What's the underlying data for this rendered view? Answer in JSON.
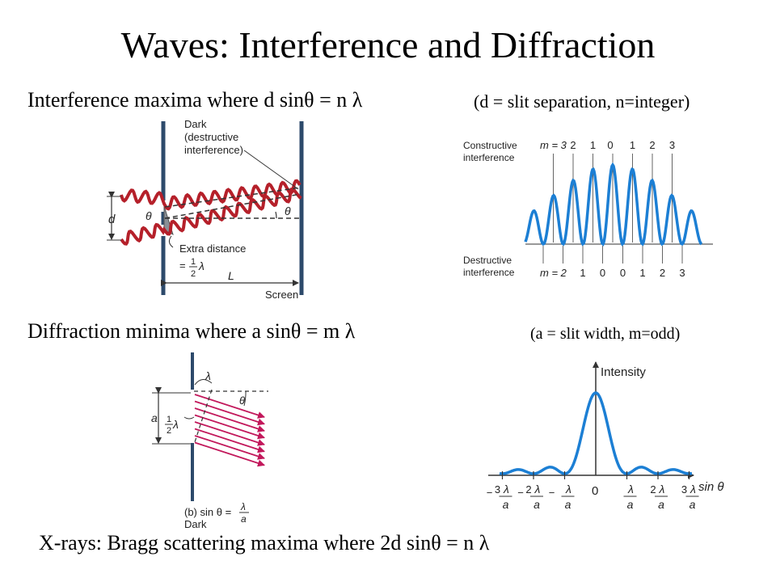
{
  "title": "Waves:  Interference and Diffraction",
  "interference": {
    "statement": "Interference maxima where d sinθ = n λ",
    "note": "(d = slit separation, n=integer)",
    "double_slit": {
      "dark_label": [
        "Dark",
        "(destructive",
        "interference)"
      ],
      "d_label": "d",
      "theta_label": "θ",
      "extra_distance_label": "Extra distance",
      "half_eq": "=",
      "half_num": "1",
      "half_den": "2",
      "lambda_label": "λ",
      "L_label": "L",
      "screen_label": "Screen"
    },
    "pattern": {
      "constructive_label": [
        "Constructive",
        "interference"
      ],
      "destructive_label": [
        "Destructive",
        "interference"
      ],
      "top_orders": [
        "m = 3",
        "2",
        "1",
        "0",
        "1",
        "2",
        "3"
      ],
      "bottom_orders": [
        "m = 2",
        "1",
        "0",
        "0",
        "1",
        "2",
        "3"
      ]
    }
  },
  "diffraction": {
    "statement": "Diffraction minima where a sinθ = m λ",
    "note": "(a = slit width, m=odd)",
    "single_slit": {
      "lambda_label": "λ",
      "theta_label": "θ",
      "a_label": "a",
      "half_num": "1",
      "half_den": "2",
      "half_lambda": "λ",
      "caption_prefix": "(b) sin θ =",
      "caption_num": "λ",
      "caption_den": "a",
      "dark_label": "Dark"
    },
    "intensity_plot": {
      "ylabel": "Intensity",
      "xlabel": "sin θ",
      "zero_label": "0",
      "ticks": [
        {
          "sign": "−",
          "coef": "3",
          "num": "λ",
          "den": "a"
        },
        {
          "sign": "−",
          "coef": "2",
          "num": "λ",
          "den": "a"
        },
        {
          "sign": "−",
          "coef": "",
          "num": "λ",
          "den": "a"
        },
        {
          "sign": "",
          "coef": "",
          "num": "λ",
          "den": "a"
        },
        {
          "sign": "",
          "coef": "2",
          "num": "λ",
          "den": "a"
        },
        {
          "sign": "",
          "coef": "3",
          "num": "λ",
          "den": "a"
        }
      ]
    }
  },
  "xray": {
    "statement": "X-rays: Bragg scattering maxima where 2d sinθ = n λ"
  },
  "colors": {
    "wave": "#b5202a",
    "curve": "#1c7fd4",
    "ray": "#c2185b",
    "screen": "#2d4a6b",
    "line": "#333333"
  }
}
